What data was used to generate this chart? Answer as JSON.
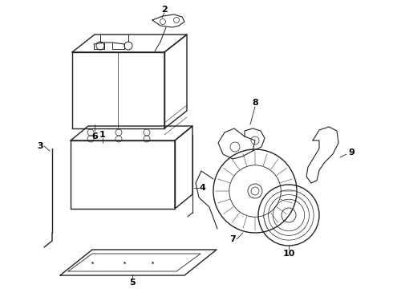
{
  "bg_color": "#ffffff",
  "line_color": "#222222",
  "label_color": "#000000",
  "fig_w": 4.9,
  "fig_h": 3.6,
  "dpi": 100,
  "xmax": 490,
  "ymax": 360
}
